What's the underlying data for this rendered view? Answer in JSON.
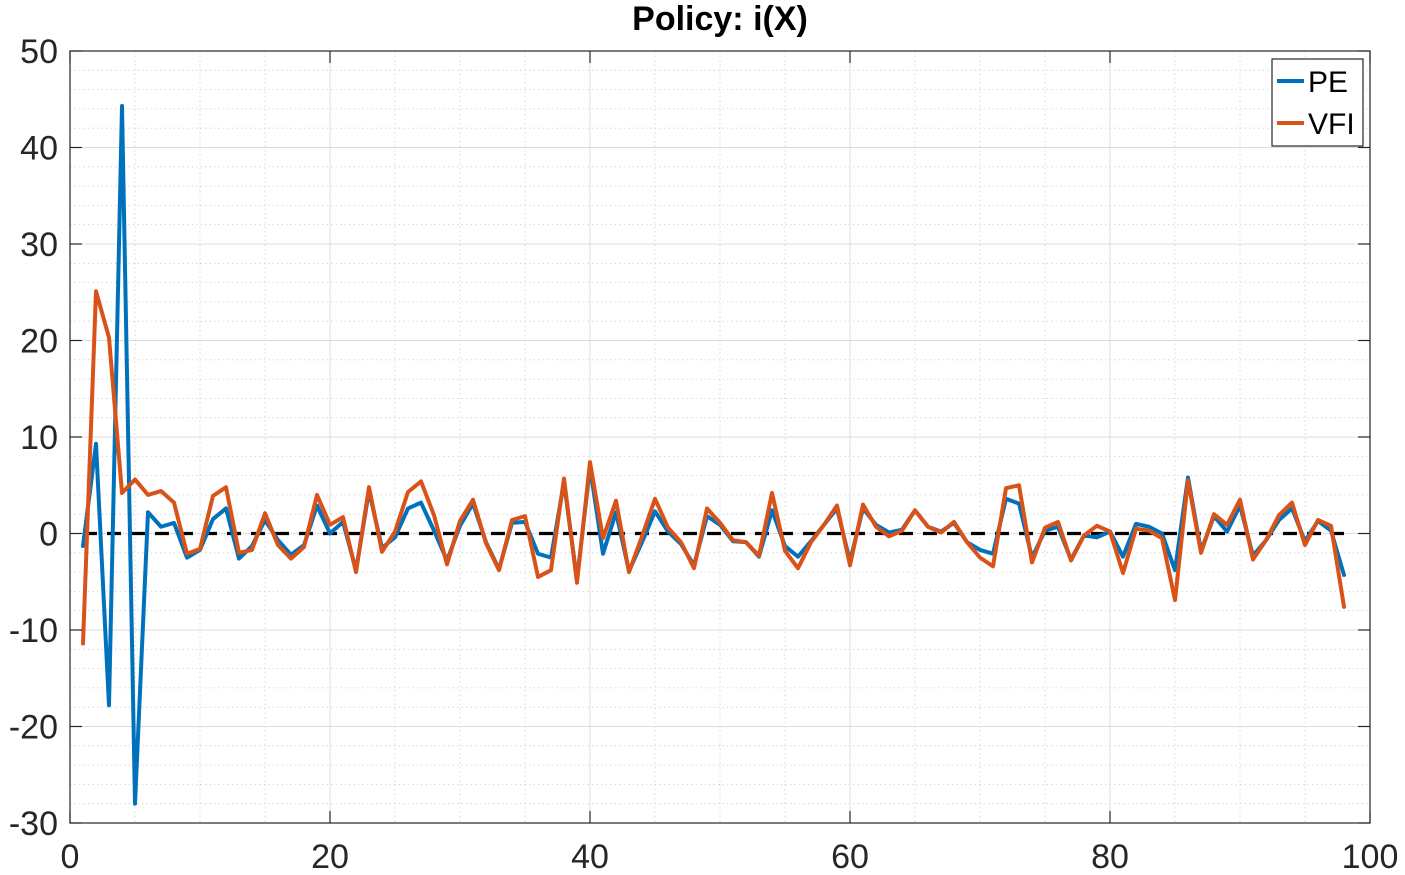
{
  "chart_data": {
    "type": "line",
    "title": "Policy: i(X)",
    "xlabel": "",
    "ylabel": "",
    "xlim": [
      0,
      100
    ],
    "ylim": [
      -30,
      50
    ],
    "x_ticks": [
      0,
      20,
      40,
      60,
      80,
      100
    ],
    "y_ticks": [
      -30,
      -20,
      -10,
      0,
      10,
      20,
      30,
      40,
      50
    ],
    "x_tick_labels": [
      "0",
      "20",
      "40",
      "60",
      "80",
      "100"
    ],
    "y_tick_labels": [
      "-30",
      "-20",
      "-10",
      "0",
      "10",
      "20",
      "30",
      "40",
      "50"
    ],
    "grid": true,
    "minor_grid": true,
    "legend_position": "top-right",
    "x": [
      1,
      2,
      3,
      4,
      5,
      6,
      7,
      8,
      9,
      10,
      11,
      12,
      13,
      14,
      15,
      16,
      17,
      18,
      19,
      20,
      21,
      22,
      23,
      24,
      25,
      26,
      27,
      28,
      29,
      30,
      31,
      32,
      33,
      34,
      35,
      36,
      37,
      38,
      39,
      40,
      41,
      42,
      43,
      44,
      45,
      46,
      47,
      48,
      49,
      50,
      51,
      52,
      53,
      54,
      55,
      56,
      57,
      58,
      59,
      60,
      61,
      62,
      63,
      64,
      65,
      66,
      67,
      68,
      69,
      70,
      71,
      72,
      73,
      74,
      75,
      76,
      77,
      78,
      79,
      80,
      81,
      82,
      83,
      84,
      85,
      86,
      87,
      88,
      89,
      90,
      91,
      92,
      93,
      94,
      95,
      96,
      97,
      98
    ],
    "series": [
      {
        "name": "PE",
        "color": "#0072BD",
        "values": [
          -1.3,
          9.3,
          -17.8,
          44.3,
          -28.0,
          2.2,
          0.7,
          1.1,
          -2.5,
          -1.7,
          1.5,
          2.6,
          -2.6,
          -1.3,
          1.4,
          -0.7,
          -2.2,
          -1.2,
          2.9,
          0.0,
          1.2,
          -3.8,
          4.4,
          -1.5,
          -0.4,
          2.6,
          3.2,
          0.3,
          -2.8,
          0.8,
          3.1,
          -0.9,
          -3.7,
          1.1,
          1.2,
          -2.1,
          -2.5,
          5.3,
          -4.8,
          6.9,
          -2.1,
          2.2,
          -3.9,
          -0.9,
          2.3,
          0.2,
          -1.1,
          -3.3,
          1.8,
          0.9,
          -0.8,
          -0.9,
          -2.4,
          2.4,
          -1.3,
          -2.4,
          -0.8,
          0.9,
          2.6,
          -2.9,
          2.6,
          0.9,
          0.1,
          0.4,
          2.4,
          0.7,
          0.2,
          1.1,
          -0.9,
          -1.7,
          -2.1,
          3.6,
          3.1,
          -2.5,
          0.3,
          0.7,
          -2.7,
          -0.2,
          -0.4,
          0.2,
          -2.4,
          1.0,
          0.7,
          0.0,
          -3.8,
          5.8,
          -1.8,
          1.8,
          0.2,
          2.9,
          -2.3,
          -0.7,
          1.4,
          2.6,
          -0.8,
          1.3,
          0.3,
          -4.3
        ]
      },
      {
        "name": "VFI",
        "color": "#D95319",
        "values": [
          -11.4,
          25.1,
          20.3,
          4.2,
          5.6,
          4.0,
          4.4,
          3.2,
          -2.1,
          -1.6,
          3.9,
          4.8,
          -2.0,
          -1.7,
          2.1,
          -1.2,
          -2.6,
          -1.4,
          4.0,
          0.9,
          1.7,
          -4.0,
          4.8,
          -1.9,
          0.2,
          4.3,
          5.4,
          1.9,
          -3.2,
          1.3,
          3.5,
          -1.0,
          -3.8,
          1.4,
          1.8,
          -4.5,
          -3.8,
          5.7,
          -5.1,
          7.4,
          -0.5,
          3.4,
          -4.0,
          -0.3,
          3.6,
          0.6,
          -0.9,
          -3.6,
          2.6,
          1.1,
          -0.7,
          -0.9,
          -2.3,
          4.2,
          -1.8,
          -3.6,
          -0.9,
          0.9,
          2.9,
          -3.3,
          3.0,
          0.7,
          -0.3,
          0.3,
          2.4,
          0.7,
          0.1,
          1.2,
          -0.9,
          -2.5,
          -3.4,
          4.7,
          5.0,
          -3.0,
          0.6,
          1.2,
          -2.8,
          -0.2,
          0.8,
          0.2,
          -4.1,
          0.5,
          0.3,
          -0.5,
          -6.9,
          5.5,
          -2.0,
          2.0,
          0.9,
          3.5,
          -2.7,
          -0.7,
          1.9,
          3.2,
          -1.2,
          1.4,
          0.8,
          -7.6
        ]
      }
    ],
    "reference_line": {
      "y": 0,
      "color": "#000000",
      "style": "dashed"
    }
  }
}
